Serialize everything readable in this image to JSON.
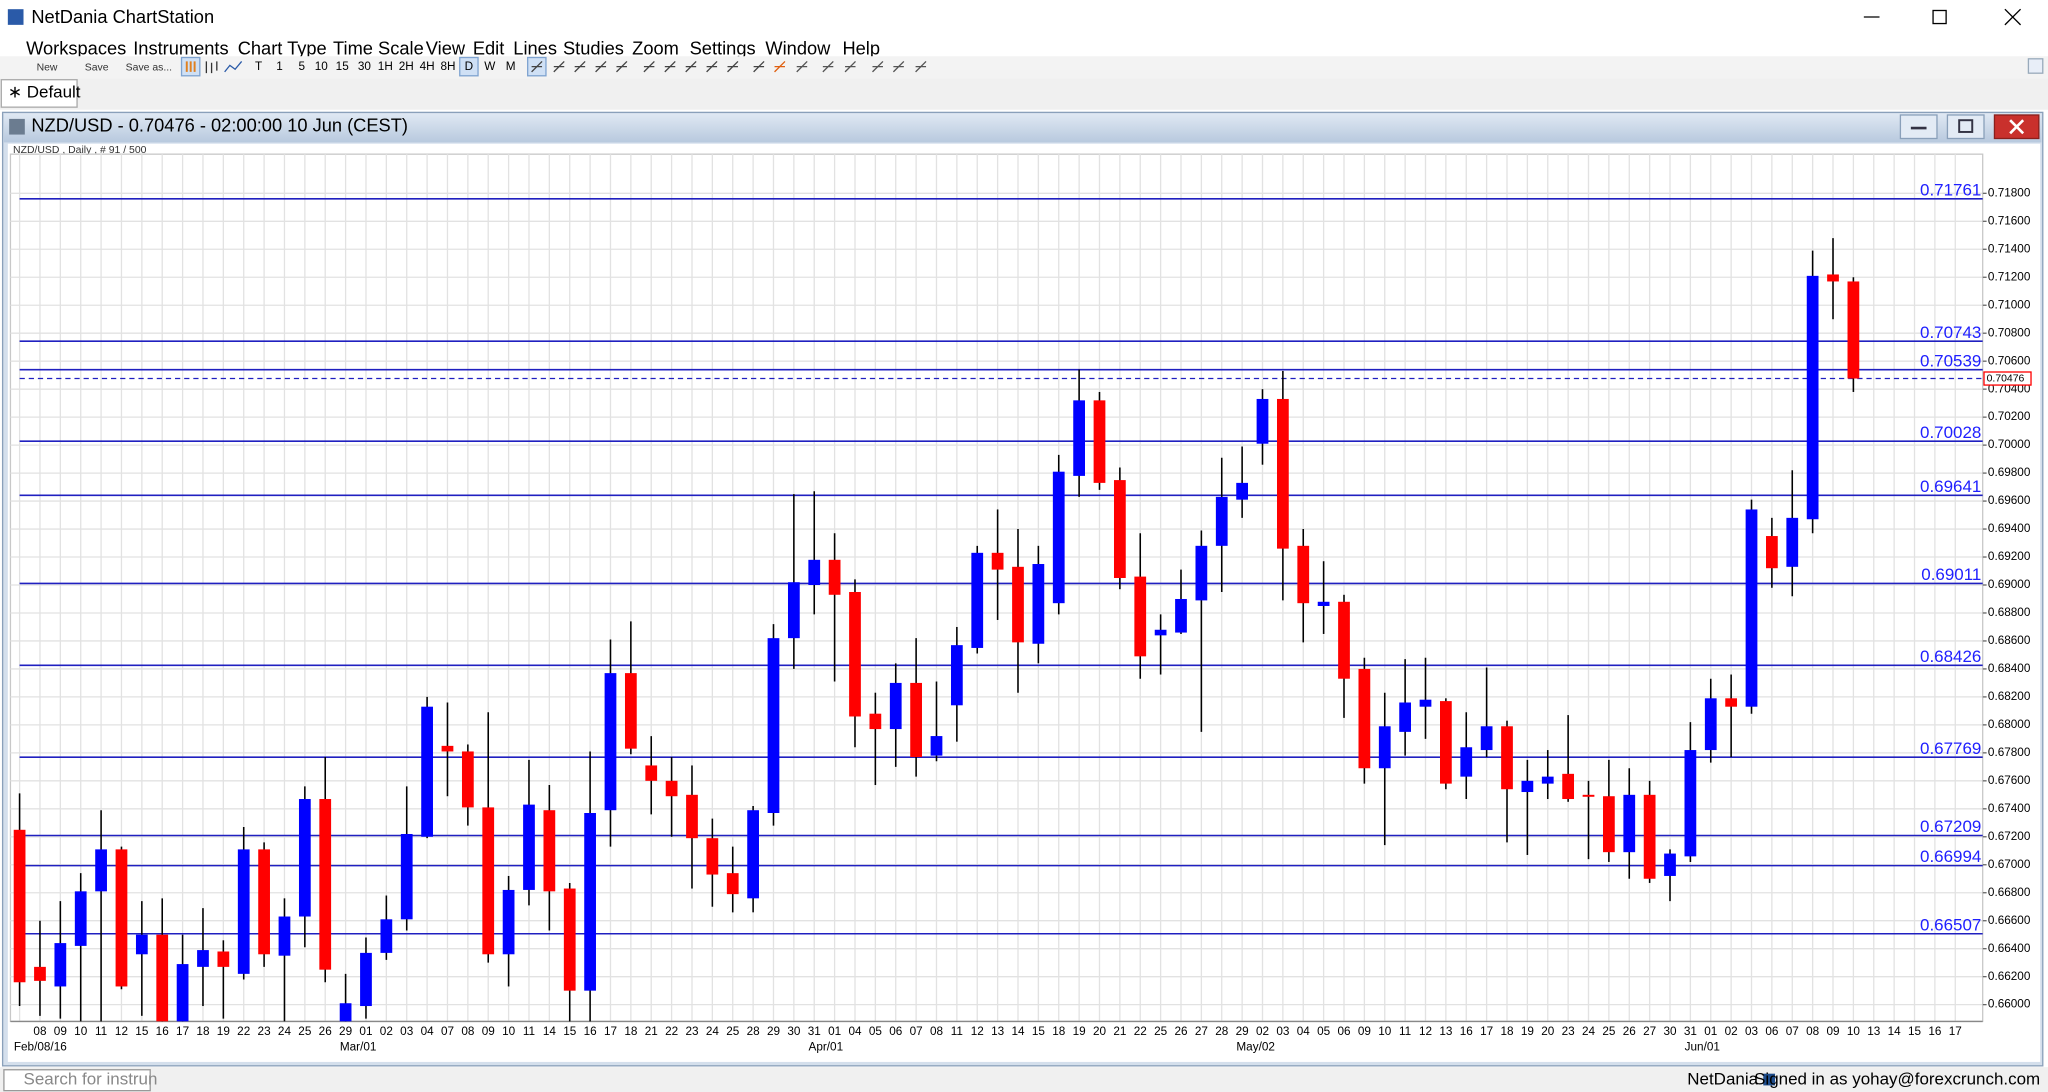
{
  "window": {
    "title": "NetDania ChartStation"
  },
  "menu": [
    "Workspaces",
    "Instruments",
    "Chart Type",
    "Time Scale",
    "View",
    "Edit",
    "Lines",
    "Studies",
    "Zoom",
    "Settings",
    "Window",
    "Help"
  ],
  "toolbar": {
    "file_buttons": [
      "New",
      "Save",
      "Save as..."
    ],
    "periods": [
      "T",
      "1",
      "5",
      "10",
      "15",
      "30",
      "1H",
      "2H",
      "4H",
      "8H",
      "D",
      "W",
      "M"
    ],
    "selected_period": "D"
  },
  "tab": {
    "label": "∗ Default"
  },
  "status_bar": {
    "search_placeholder": "Search for instrun",
    "brand": "NetDania",
    "user": "Signed in as yohay@forexcrunch.com"
  },
  "chart_data": {
    "type": "candlestick",
    "title": "NZD/USD - 0.70476 - 02:00:00  10 Jun (CEST)",
    "subtitle": "NZD/USD , Daily , # 91 / 500",
    "categories": [
      null,
      "08",
      "09",
      "10",
      "11",
      "12",
      "15",
      "16",
      "17",
      "18",
      "19",
      "22",
      "23",
      "24",
      "25",
      "26",
      "29",
      "01",
      "02",
      "03",
      "04",
      "07",
      "08",
      "09",
      "10",
      "11",
      "14",
      "15",
      "16",
      "17",
      "18",
      "21",
      "22",
      "23",
      "24",
      "25",
      "28",
      "29",
      "30",
      "31",
      "01",
      "04",
      "05",
      "06",
      "07",
      "08",
      "11",
      "12",
      "13",
      "14",
      "15",
      "18",
      "19",
      "20",
      "21",
      "22",
      "25",
      "26",
      "27",
      "28",
      "29",
      "02",
      "03",
      "04",
      "05",
      "06",
      "09",
      "10",
      "11",
      "12",
      "13",
      "16",
      "17",
      "18",
      "19",
      "20",
      "23",
      "24",
      "25",
      "26",
      "27",
      "30",
      "31",
      "01",
      "02",
      "03",
      "06",
      "07",
      "08",
      "09",
      "10",
      "13",
      "14",
      "15",
      "16",
      "17"
    ],
    "period_labels": [
      null,
      "Feb/08/16",
      null,
      null,
      null,
      null,
      null,
      null,
      null,
      null,
      null,
      null,
      null,
      null,
      null,
      null,
      null,
      "Mar/01",
      null,
      null,
      null,
      null,
      null,
      null,
      null,
      null,
      null,
      null,
      null,
      null,
      null,
      null,
      null,
      null,
      null,
      null,
      null,
      null,
      null,
      null,
      "Apr/01",
      null,
      null,
      null,
      null,
      null,
      null,
      null,
      null,
      null,
      null,
      null,
      null,
      null,
      null,
      null,
      null,
      null,
      null,
      null,
      null,
      "May/02",
      null,
      null,
      null,
      null,
      null,
      null,
      null,
      null,
      null,
      null,
      null,
      null,
      null,
      null,
      null,
      null,
      null,
      null,
      null,
      null,
      null,
      "Jun/01",
      null,
      null,
      null,
      null,
      null,
      null,
      null,
      null,
      null,
      null,
      null,
      null
    ],
    "open": [
      0.6725,
      0.6627,
      0.6613,
      0.6642,
      0.6681,
      0.6711,
      0.6636,
      0.665,
      0.6588,
      0.6627,
      0.6638,
      0.6622,
      0.6711,
      0.6635,
      0.6663,
      0.6747,
      0.6588,
      0.6599,
      0.6637,
      0.6661,
      0.672,
      0.6785,
      0.6781,
      0.6741,
      0.6636,
      0.6682,
      0.6739,
      0.6683,
      0.661,
      0.6739,
      0.6837,
      0.6771,
      0.676,
      0.675,
      0.6719,
      0.6694,
      0.6676,
      0.6737,
      0.6862,
      0.69,
      0.6918,
      0.6895,
      0.6808,
      0.6797,
      0.683,
      0.6778,
      0.6814,
      0.6855,
      0.6923,
      0.6913,
      0.6858,
      0.6887,
      0.6978,
      0.7032,
      0.6975,
      0.6906,
      0.6864,
      0.6866,
      0.6889,
      0.6928,
      0.6961,
      0.7001,
      0.7033,
      0.6928,
      0.6885,
      0.6888,
      0.684,
      0.6769,
      0.6795,
      0.6813,
      0.6817,
      0.6763,
      0.6782,
      0.6799,
      0.6752,
      0.6758,
      0.6765,
      0.675,
      0.6749,
      0.6709,
      0.675,
      0.6692,
      0.6706,
      0.6782,
      0.6819,
      0.6813,
      0.6935,
      0.6913,
      0.6947,
      0.7122,
      0.7117,
      null,
      null,
      null,
      null,
      null
    ],
    "high": [
      0.6751,
      0.666,
      0.6674,
      0.6694,
      0.6739,
      0.6713,
      0.6674,
      0.6676,
      0.665,
      0.6669,
      0.6646,
      0.6727,
      0.6716,
      0.6676,
      0.6756,
      0.6777,
      0.6622,
      0.6648,
      0.6678,
      0.6756,
      0.682,
      0.6816,
      0.6786,
      0.6809,
      0.6692,
      0.6775,
      0.6757,
      0.6687,
      0.6781,
      0.6861,
      0.6874,
      0.6792,
      0.6777,
      0.6771,
      0.6733,
      0.6713,
      0.6742,
      0.6872,
      0.6965,
      0.6967,
      0.6937,
      0.6904,
      0.6823,
      0.6844,
      0.6862,
      0.6831,
      0.687,
      0.6928,
      0.6954,
      0.694,
      0.6928,
      0.6993,
      0.7054,
      0.7038,
      0.6984,
      0.6937,
      0.6879,
      0.6911,
      0.6939,
      0.6991,
      0.6999,
      0.704,
      0.7053,
      0.694,
      0.6917,
      0.6893,
      0.6848,
      0.6823,
      0.6847,
      0.6848,
      0.6819,
      0.6809,
      0.6841,
      0.6803,
      0.6775,
      0.6782,
      0.6807,
      0.676,
      0.6775,
      0.6769,
      0.676,
      0.6711,
      0.6802,
      0.6833,
      0.6836,
      0.6961,
      0.6948,
      0.6982,
      0.7139,
      0.7148,
      0.712,
      null,
      null,
      null,
      null,
      null
    ],
    "low": [
      0.6599,
      0.6592,
      0.659,
      0.6588,
      0.6585,
      0.6611,
      0.6592,
      0.6585,
      0.6585,
      0.6599,
      0.659,
      0.6618,
      0.6627,
      0.6588,
      0.6641,
      0.6616,
      0.658,
      0.659,
      0.6632,
      0.6653,
      0.6719,
      0.6749,
      0.6728,
      0.663,
      0.6613,
      0.6671,
      0.6653,
      0.6585,
      0.658,
      0.6713,
      0.6779,
      0.6736,
      0.672,
      0.6683,
      0.667,
      0.6666,
      0.6666,
      0.6728,
      0.684,
      0.6879,
      0.6831,
      0.6784,
      0.6757,
      0.677,
      0.6763,
      0.6774,
      0.6788,
      0.6851,
      0.6875,
      0.6823,
      0.6844,
      0.6879,
      0.6963,
      0.6968,
      0.6897,
      0.6833,
      0.6836,
      0.6865,
      0.6795,
      0.6895,
      0.6948,
      0.6986,
      0.6889,
      0.6859,
      0.6865,
      0.6805,
      0.6758,
      0.6714,
      0.6778,
      0.679,
      0.6754,
      0.6747,
      0.6777,
      0.6716,
      0.6707,
      0.6747,
      0.6745,
      0.6704,
      0.6702,
      0.669,
      0.6687,
      0.6674,
      0.6702,
      0.6773,
      0.6777,
      0.6808,
      0.6898,
      0.6892,
      0.6937,
      0.709,
      0.7038,
      null,
      null,
      null,
      null,
      null
    ],
    "close": [
      0.6616,
      0.6617,
      0.6644,
      0.6681,
      0.6711,
      0.6613,
      0.665,
      0.6588,
      0.6629,
      0.6639,
      0.6627,
      0.6711,
      0.6636,
      0.6663,
      0.6747,
      0.6625,
      0.6601,
      0.6637,
      0.6661,
      0.6722,
      0.6813,
      0.6781,
      0.6741,
      0.6636,
      0.6682,
      0.6743,
      0.6681,
      0.661,
      0.6737,
      0.6837,
      0.6783,
      0.676,
      0.6749,
      0.6719,
      0.6693,
      0.6679,
      0.6739,
      0.6862,
      0.6902,
      0.6918,
      0.6893,
      0.6806,
      0.6797,
      0.683,
      0.6777,
      0.6792,
      0.6857,
      0.6923,
      0.6911,
      0.6859,
      0.6915,
      0.6981,
      0.7032,
      0.6973,
      0.6905,
      0.6849,
      0.6868,
      0.689,
      0.6928,
      0.6963,
      0.6973,
      0.7033,
      0.6926,
      0.6887,
      0.6888,
      0.6833,
      0.6769,
      0.6799,
      0.6816,
      0.6818,
      0.6758,
      0.6784,
      0.6799,
      0.6754,
      0.676,
      0.6763,
      0.6747,
      0.6749,
      0.6709,
      0.675,
      0.669,
      0.6708,
      0.6782,
      0.6819,
      0.6813,
      0.6954,
      0.6912,
      0.6948,
      0.7121,
      0.7117,
      0.70476,
      null,
      null,
      null,
      null,
      null
    ],
    "up_color": "#0000ff",
    "down_color": "#ff0000",
    "wick_color": "#000000",
    "levels": [
      0.71761,
      0.70743,
      0.70539,
      0.70028,
      0.69641,
      0.69011,
      0.68426,
      0.67769,
      0.67209,
      0.66994,
      0.66507
    ],
    "level_color": "#2020c0",
    "last_price": 0.70476,
    "ylim": [
      0.6588,
      0.7208
    ],
    "yticks": [
      {
        "value": 0.66,
        "label": "0.66000"
      },
      {
        "value": 0.662,
        "label": "0.66200"
      },
      {
        "value": 0.664,
        "label": "0.66400"
      },
      {
        "value": 0.666,
        "label": "0.66600"
      },
      {
        "value": 0.668,
        "label": "0.66800"
      },
      {
        "value": 0.67,
        "label": "0.67000"
      },
      {
        "value": 0.672,
        "label": "0.67200"
      },
      {
        "value": 0.674,
        "label": "0.67400"
      },
      {
        "value": 0.676,
        "label": "0.67600"
      },
      {
        "value": 0.678,
        "label": "0.67800"
      },
      {
        "value": 0.68,
        "label": "0.68000"
      },
      {
        "value": 0.682,
        "label": "0.68200"
      },
      {
        "value": 0.684,
        "label": "0.68400"
      },
      {
        "value": 0.686,
        "label": "0.68600"
      },
      {
        "value": 0.688,
        "label": "0.68800"
      },
      {
        "value": 0.69,
        "label": "0.69000"
      },
      {
        "value": 0.692,
        "label": "0.69200"
      },
      {
        "value": 0.694,
        "label": "0.69400"
      },
      {
        "value": 0.696,
        "label": "0.69600"
      },
      {
        "value": 0.698,
        "label": "0.69800"
      },
      {
        "value": 0.7,
        "label": "0.70000"
      },
      {
        "value": 0.702,
        "label": "0.70200"
      },
      {
        "value": 0.704,
        "label": "0.70400"
      },
      {
        "value": 0.706,
        "label": "0.70600"
      },
      {
        "value": 0.708,
        "label": "0.70800"
      },
      {
        "value": 0.71,
        "label": "0.71000"
      },
      {
        "value": 0.712,
        "label": "0.71200"
      },
      {
        "value": 0.714,
        "label": "0.71400"
      },
      {
        "value": 0.716,
        "label": "0.71600"
      },
      {
        "value": 0.718,
        "label": "0.71800"
      }
    ],
    "grid": true,
    "y_axis_side": "right"
  }
}
